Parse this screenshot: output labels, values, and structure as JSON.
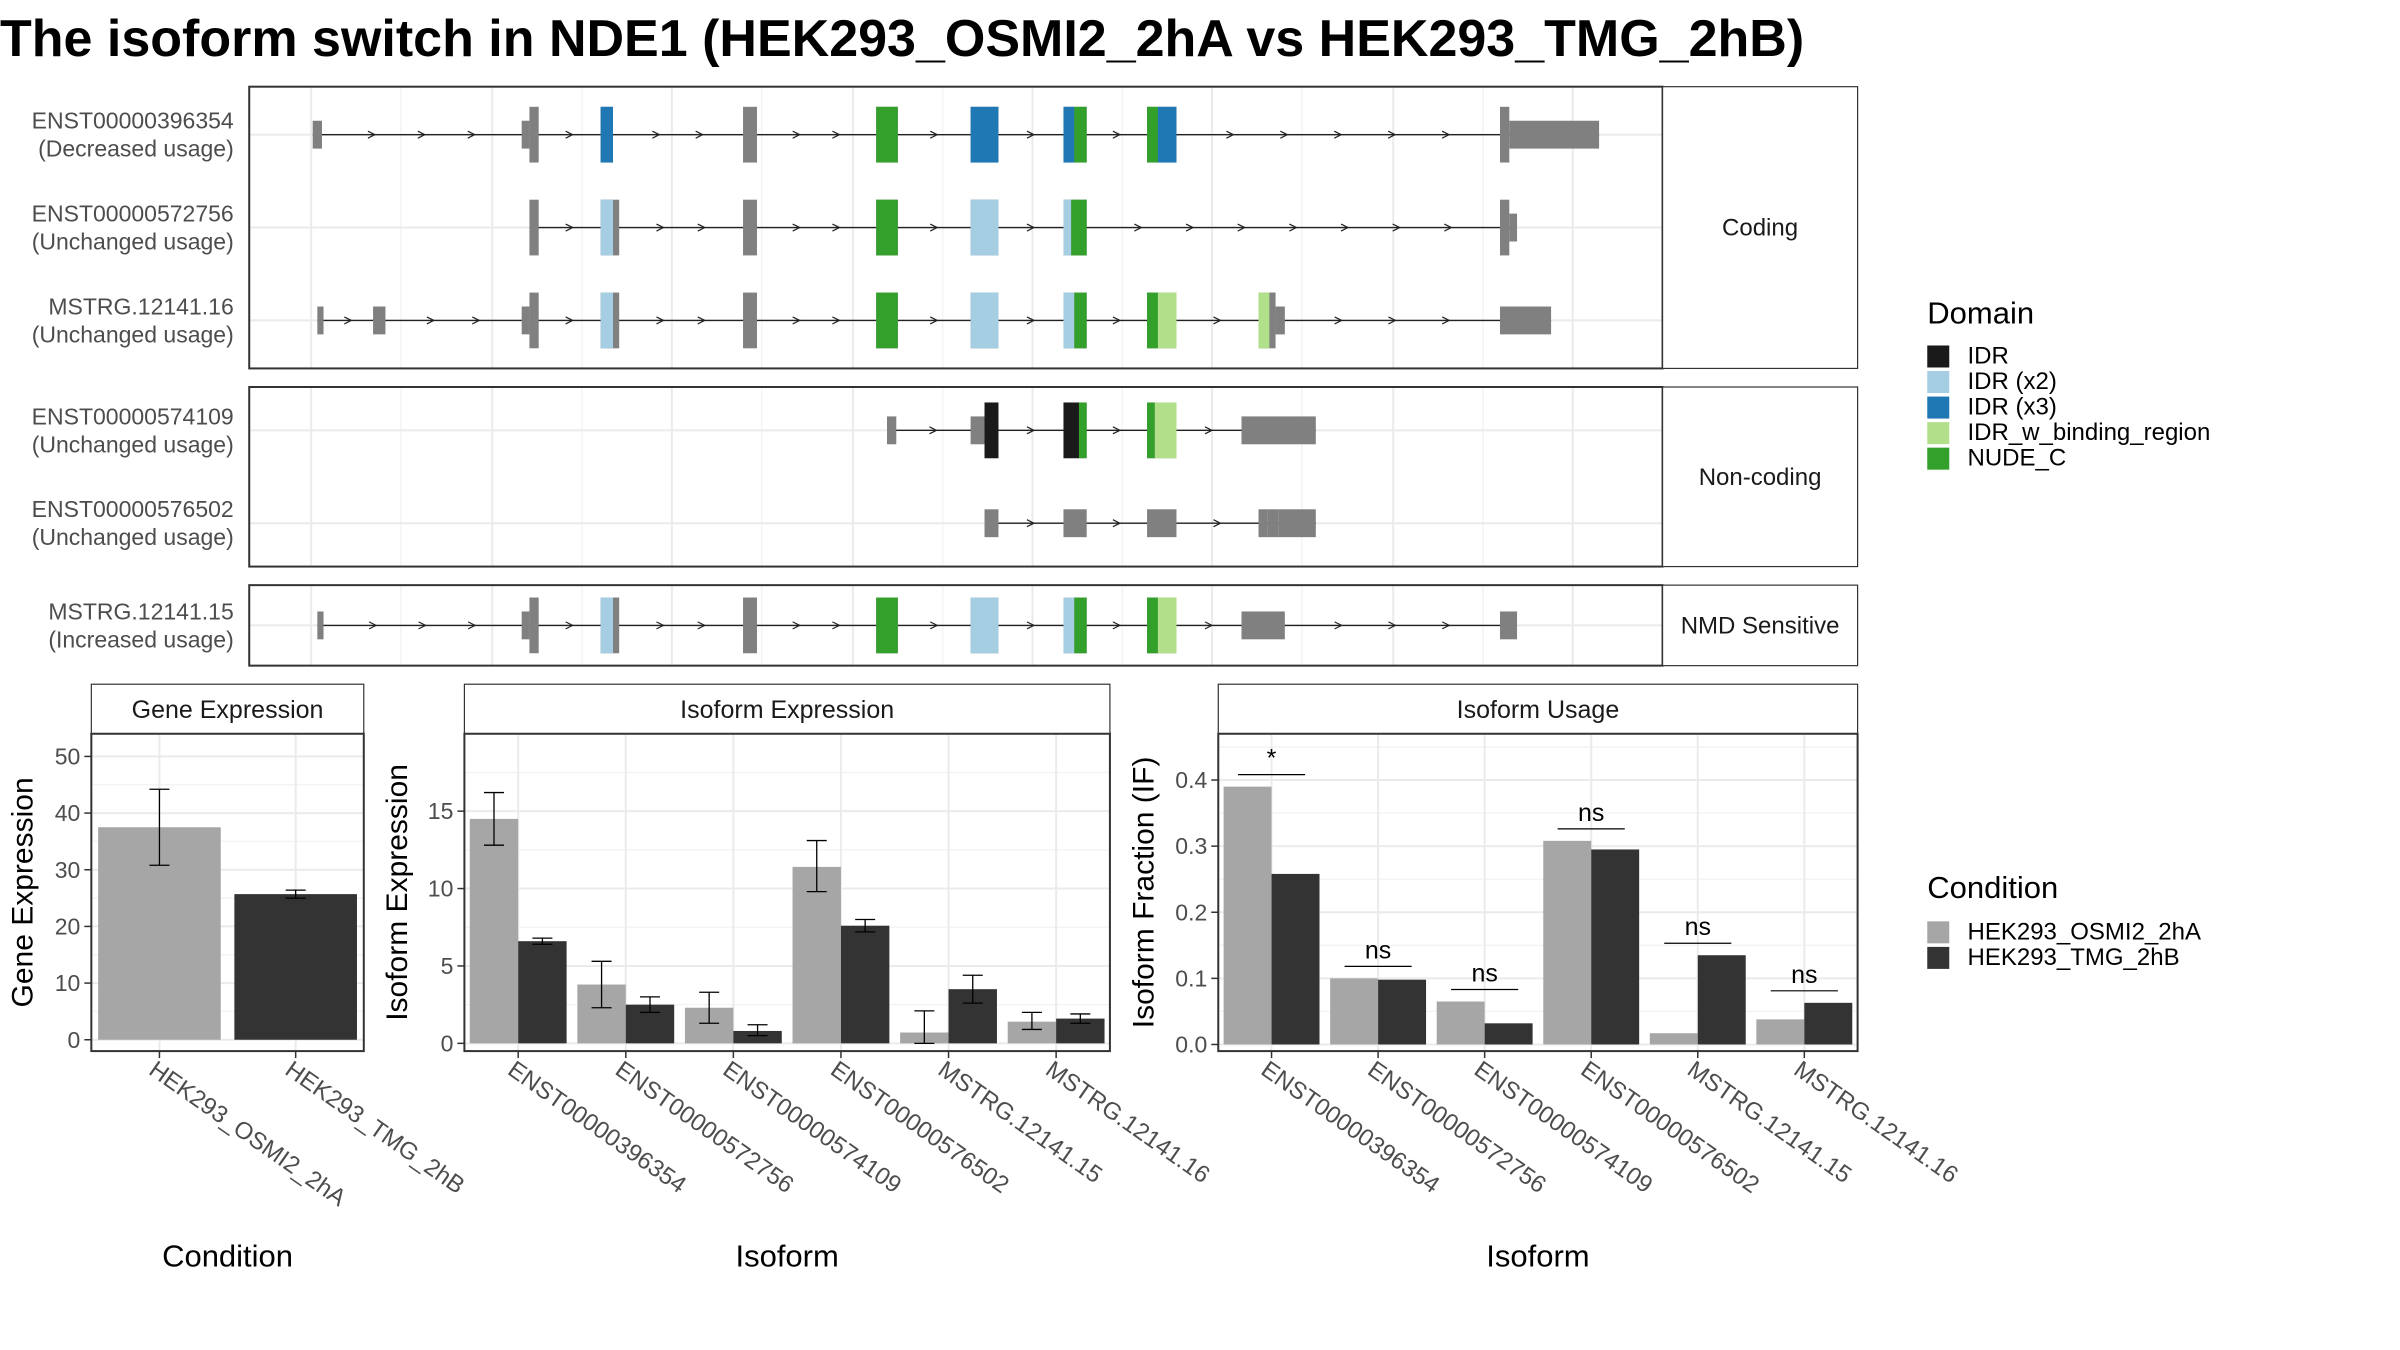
{
  "title": "The isoform switch in NDE1 (HEK293_OSMI2_2hA vs HEK293_TMG_2hB)",
  "colors": {
    "exon": "#808080",
    "IDR": "#1a1a1a",
    "IDR (x2)": "#a6cee3",
    "IDR (x3)": "#1f78b4",
    "IDR_w_binding_region": "#b2df8a",
    "NUDE_C": "#33a02c",
    "cond1": "#a6a6a6",
    "cond2": "#333333"
  },
  "legends": {
    "domain": {
      "title": "Domain",
      "items": [
        "IDR",
        "IDR (x2)",
        "IDR (x3)",
        "IDR_w_binding_region",
        "NUDE_C"
      ]
    },
    "condition": {
      "title": "Condition",
      "items": [
        "HEK293_OSMI2_2hA",
        "HEK293_TMG_2hB"
      ]
    }
  },
  "chart_data": [
    {
      "type": "gene-structure",
      "panels": [
        {
          "label": "Coding",
          "transcripts": [
            {
              "id": "ENST00000396354",
              "usage": "(Decreased usage)",
              "exons": [
                [
                  202,
                  208,
                  "u"
                ],
                [
                  337,
                  342,
                  "u"
                ],
                [
                  342,
                  348,
                  "c"
                ],
                [
                  388,
                  396,
                  "c"
                ],
                [
                  480,
                  489,
                  "c"
                ],
                [
                  566,
                  580,
                  "c"
                ],
                [
                  627,
                  645,
                  "c"
                ],
                [
                  687,
                  702,
                  "c"
                ],
                [
                  741,
                  760,
                  "c"
                ],
                [
                  969,
                  975,
                  "c"
                ],
                [
                  975,
                  1033,
                  "u"
                ]
              ],
              "domains": [
                [
                  388,
                  396,
                  "IDR (x3)"
                ],
                [
                  566,
                  571,
                  "NUDE_C"
                ],
                [
                  571,
                  580,
                  "NUDE_C"
                ],
                [
                  627,
                  645,
                  "IDR (x3)"
                ],
                [
                  687,
                  694,
                  "IDR (x3)"
                ],
                [
                  694,
                  702,
                  "NUDE_C"
                ],
                [
                  741,
                  748,
                  "NUDE_C"
                ],
                [
                  748,
                  760,
                  "IDR (x3)"
                ]
              ]
            },
            {
              "id": "ENST00000572756",
              "usage": "(Unchanged usage)",
              "exons": [
                [
                  342,
                  348,
                  "c"
                ],
                [
                  388,
                  400,
                  "c"
                ],
                [
                  480,
                  489,
                  "c"
                ],
                [
                  566,
                  580,
                  "c"
                ],
                [
                  627,
                  645,
                  "c"
                ],
                [
                  687,
                  702,
                  "c"
                ],
                [
                  969,
                  975,
                  "c"
                ],
                [
                  975,
                  980,
                  "u"
                ]
              ],
              "domains": [
                [
                  388,
                  396,
                  "IDR (x2)"
                ],
                [
                  566,
                  571,
                  "NUDE_C"
                ],
                [
                  571,
                  580,
                  "NUDE_C"
                ],
                [
                  627,
                  645,
                  "IDR (x2)"
                ],
                [
                  687,
                  692,
                  "IDR (x2)"
                ],
                [
                  692,
                  702,
                  "NUDE_C"
                ]
              ]
            },
            {
              "id": "MSTRG.12141.16",
              "usage": "(Unchanged usage)",
              "exons": [
                [
                  205,
                  209,
                  "u"
                ],
                [
                  241,
                  249,
                  "u"
                ],
                [
                  337,
                  342,
                  "u"
                ],
                [
                  342,
                  348,
                  "c"
                ],
                [
                  388,
                  400,
                  "c"
                ],
                [
                  480,
                  489,
                  "c"
                ],
                [
                  566,
                  580,
                  "c"
                ],
                [
                  627,
                  645,
                  "c"
                ],
                [
                  687,
                  702,
                  "c"
                ],
                [
                  741,
                  760,
                  "c"
                ],
                [
                  813,
                  824,
                  "c"
                ],
                [
                  824,
                  830,
                  "u"
                ],
                [
                  969,
                  1002,
                  "u"
                ]
              ],
              "domains": [
                [
                  388,
                  396,
                  "IDR (x2)"
                ],
                [
                  566,
                  571,
                  "NUDE_C"
                ],
                [
                  571,
                  580,
                  "NUDE_C"
                ],
                [
                  627,
                  645,
                  "IDR (x2)"
                ],
                [
                  687,
                  694,
                  "IDR (x2)"
                ],
                [
                  694,
                  702,
                  "NUDE_C"
                ],
                [
                  741,
                  748,
                  "NUDE_C"
                ],
                [
                  748,
                  760,
                  "IDR_w_binding_region"
                ],
                [
                  813,
                  820,
                  "IDR_w_binding_region"
                ]
              ]
            }
          ]
        },
        {
          "label": "Non-coding",
          "transcripts": [
            {
              "id": "ENST00000574109",
              "usage": "(Unchanged usage)",
              "exons": [
                [
                  573,
                  579,
                  "u"
                ],
                [
                  627,
                  636,
                  "u"
                ],
                [
                  636,
                  645,
                  "c"
                ],
                [
                  687,
                  702,
                  "c"
                ],
                [
                  741,
                  760,
                  "c"
                ],
                [
                  802,
                  850,
                  "u"
                ]
              ],
              "domains": [
                [
                  636,
                  645,
                  "IDR"
                ],
                [
                  687,
                  697,
                  "IDR"
                ],
                [
                  697,
                  702,
                  "NUDE_C"
                ],
                [
                  741,
                  746,
                  "NUDE_C"
                ],
                [
                  746,
                  760,
                  "IDR_w_binding_region"
                ]
              ]
            },
            {
              "id": "ENST00000576502",
              "usage": "(Unchanged usage)",
              "exons": [
                [
                  636,
                  645,
                  "u"
                ],
                [
                  687,
                  702,
                  "u"
                ],
                [
                  741,
                  760,
                  "u"
                ],
                [
                  813,
                  819,
                  "u"
                ],
                [
                  819,
                  826,
                  "u"
                ],
                [
                  826,
                  850,
                  "u"
                ]
              ],
              "domains": []
            }
          ]
        },
        {
          "label": "NMD Sensitive",
          "transcripts": [
            {
              "id": "MSTRG.12141.15",
              "usage": "(Increased usage)",
              "exons": [
                [
                  205,
                  209,
                  "u"
                ],
                [
                  337,
                  342,
                  "u"
                ],
                [
                  342,
                  348,
                  "c"
                ],
                [
                  388,
                  400,
                  "c"
                ],
                [
                  480,
                  489,
                  "c"
                ],
                [
                  566,
                  580,
                  "c"
                ],
                [
                  627,
                  645,
                  "c"
                ],
                [
                  687,
                  702,
                  "c"
                ],
                [
                  741,
                  760,
                  "c"
                ],
                [
                  802,
                  830,
                  "u"
                ],
                [
                  969,
                  980,
                  "u"
                ]
              ],
              "domains": [
                [
                  388,
                  396,
                  "IDR (x2)"
                ],
                [
                  566,
                  571,
                  "NUDE_C"
                ],
                [
                  571,
                  580,
                  "NUDE_C"
                ],
                [
                  627,
                  645,
                  "IDR (x2)"
                ],
                [
                  687,
                  694,
                  "IDR (x2)"
                ],
                [
                  694,
                  702,
                  "NUDE_C"
                ],
                [
                  741,
                  748,
                  "NUDE_C"
                ],
                [
                  748,
                  760,
                  "IDR_w_binding_region"
                ]
              ]
            }
          ]
        }
      ]
    },
    {
      "type": "bar",
      "title": "Gene Expression",
      "xlabel": "Condition",
      "ylabel": "Gene Expression",
      "ylim": [
        -2,
        54
      ],
      "yticks": [
        0,
        10,
        20,
        30,
        40,
        50
      ],
      "categories": [
        "HEK293_OSMI2_2hA",
        "HEK293_TMG_2hB"
      ],
      "values": [
        37.5,
        25.7
      ],
      "errors": [
        [
          30.8,
          44.2
        ],
        [
          25.0,
          26.4
        ]
      ]
    },
    {
      "type": "bar",
      "title": "Isoform Expression",
      "xlabel": "Isoform",
      "ylabel": "Isoform Expression",
      "ylim": [
        -0.5,
        20
      ],
      "yticks": [
        0,
        5,
        10,
        15
      ],
      "categories": [
        "ENST00000396354",
        "ENST00000572756",
        "ENST00000574109",
        "ENST00000576502",
        "MSTRG.12141.15",
        "MSTRG.12141.16"
      ],
      "series": [
        {
          "name": "HEK293_OSMI2_2hA",
          "values": [
            14.5,
            3.8,
            2.3,
            11.4,
            0.7,
            1.4
          ],
          "errors": [
            [
              12.8,
              16.2
            ],
            [
              2.3,
              5.3
            ],
            [
              1.3,
              3.3
            ],
            [
              9.8,
              13.1
            ],
            [
              0.0,
              2.1
            ],
            [
              0.9,
              2.0
            ]
          ]
        },
        {
          "name": "HEK293_TMG_2hB",
          "values": [
            6.6,
            2.5,
            0.8,
            7.6,
            3.5,
            1.6
          ],
          "errors": [
            [
              6.4,
              6.8
            ],
            [
              2.0,
              3.0
            ],
            [
              0.5,
              1.2
            ],
            [
              7.2,
              8.0
            ],
            [
              2.6,
              4.4
            ],
            [
              1.3,
              1.9
            ]
          ]
        }
      ]
    },
    {
      "type": "bar",
      "title": "Isoform Usage",
      "xlabel": "Isoform",
      "ylabel": "Isoform Fraction (IF)",
      "ylim": [
        -0.01,
        0.47
      ],
      "yticks": [
        0.0,
        0.1,
        0.2,
        0.3,
        0.4
      ],
      "yticklabels": [
        "0.0",
        "0.1",
        "0.2",
        "0.3",
        "0.4"
      ],
      "categories": [
        "ENST00000396354",
        "ENST00000572756",
        "ENST00000574109",
        "ENST00000576502",
        "MSTRG.12141.15",
        "MSTRG.12141.16"
      ],
      "series": [
        {
          "name": "HEK293_OSMI2_2hA",
          "values": [
            0.39,
            0.1,
            0.065,
            0.308,
            0.017,
            0.038
          ]
        },
        {
          "name": "HEK293_TMG_2hB",
          "values": [
            0.258,
            0.098,
            0.032,
            0.295,
            0.135,
            0.063
          ]
        }
      ],
      "significance": [
        "*",
        "ns",
        "ns",
        "ns",
        "ns",
        "ns"
      ]
    }
  ]
}
